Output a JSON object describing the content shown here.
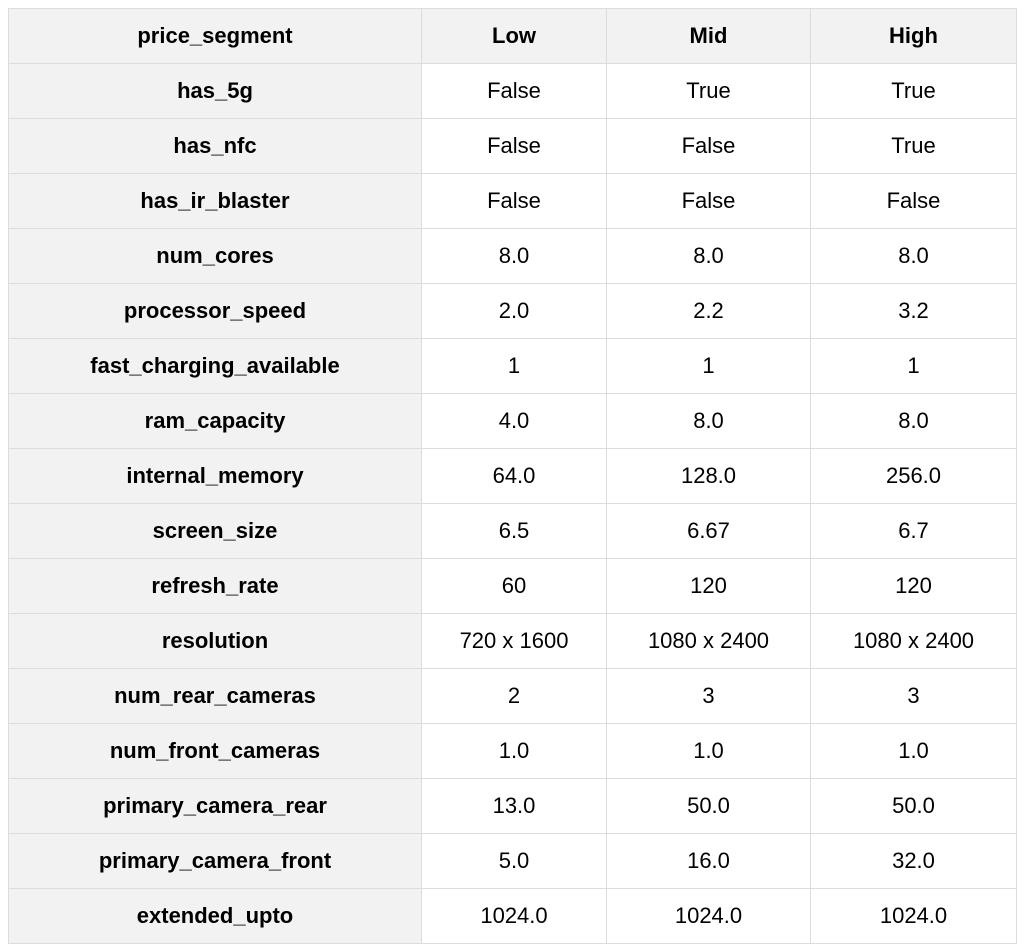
{
  "table": {
    "header": [
      "price_segment",
      "Low",
      "Mid",
      "High"
    ],
    "rows": [
      {
        "label": "has_5g",
        "values": [
          "False",
          "True",
          "True"
        ]
      },
      {
        "label": "has_nfc",
        "values": [
          "False",
          "False",
          "True"
        ]
      },
      {
        "label": "has_ir_blaster",
        "values": [
          "False",
          "False",
          "False"
        ]
      },
      {
        "label": "num_cores",
        "values": [
          "8.0",
          "8.0",
          "8.0"
        ]
      },
      {
        "label": "processor_speed",
        "values": [
          "2.0",
          "2.2",
          "3.2"
        ]
      },
      {
        "label": "fast_charging_available",
        "values": [
          "1",
          "1",
          "1"
        ]
      },
      {
        "label": "ram_capacity",
        "values": [
          "4.0",
          "8.0",
          "8.0"
        ]
      },
      {
        "label": "internal_memory",
        "values": [
          "64.0",
          "128.0",
          "256.0"
        ]
      },
      {
        "label": "screen_size",
        "values": [
          "6.5",
          "6.67",
          "6.7"
        ]
      },
      {
        "label": "refresh_rate",
        "values": [
          "60",
          "120",
          "120"
        ]
      },
      {
        "label": "resolution",
        "values": [
          "720 x 1600",
          "1080 x 2400",
          "1080 x 2400"
        ]
      },
      {
        "label": "num_rear_cameras",
        "values": [
          "2",
          "3",
          "3"
        ]
      },
      {
        "label": "num_front_cameras",
        "values": [
          "1.0",
          "1.0",
          "1.0"
        ]
      },
      {
        "label": "primary_camera_rear",
        "values": [
          "13.0",
          "50.0",
          "50.0"
        ]
      },
      {
        "label": "primary_camera_front",
        "values": [
          "5.0",
          "16.0",
          "32.0"
        ]
      },
      {
        "label": "extended_upto",
        "values": [
          "1024.0",
          "1024.0",
          "1024.0"
        ]
      }
    ]
  },
  "colors": {
    "header_bg": "#f2f2f2",
    "row_label_bg": "#f2f2f2",
    "cell_bg": "#ffffff",
    "border": "#dcdcdc",
    "text": "#000000"
  }
}
